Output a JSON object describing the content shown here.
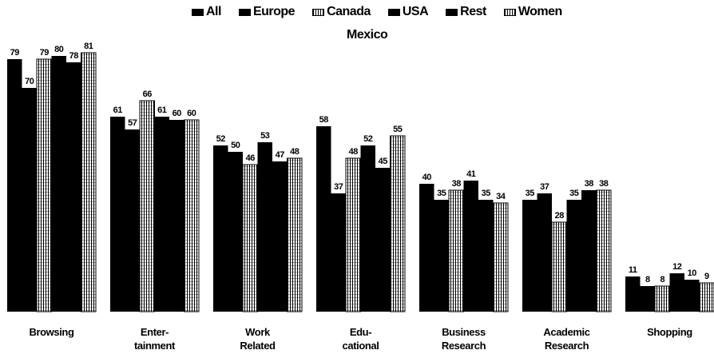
{
  "chart_data": {
    "type": "bar",
    "categories": [
      "Browsing",
      "Enter-\ntainment",
      "Work\nRelated",
      "Edu-\ncational",
      "Business\nResearch",
      "Academic\nResearch",
      "Shopping"
    ],
    "series": [
      {
        "name": "All",
        "pattern": "solid",
        "values": [
          79,
          61,
          52,
          58,
          40,
          35,
          11
        ]
      },
      {
        "name": "Europe",
        "pattern": "solid",
        "values": [
          70,
          57,
          50,
          37,
          35,
          37,
          8
        ]
      },
      {
        "name": "Canada",
        "pattern": "hatch",
        "values": [
          79,
          66,
          46,
          48,
          38,
          28,
          8
        ]
      },
      {
        "name": "USA",
        "pattern": "solid",
        "values": [
          80,
          61,
          53,
          52,
          41,
          35,
          12
        ]
      },
      {
        "name": "Rest",
        "pattern": "solid",
        "values": [
          78,
          60,
          47,
          45,
          35,
          38,
          10
        ]
      },
      {
        "name": "Women",
        "pattern": "hatch",
        "values": [
          81,
          60,
          48,
          55,
          34,
          38,
          9
        ]
      }
    ],
    "legend_extra": "Mexico",
    "value_labels": true,
    "ylim": [
      0,
      100
    ],
    "grid": false,
    "legend_position": "top",
    "colors": {
      "solid": "#000000",
      "hatch_bg": "#ffffff",
      "hatch_line": "#000000"
    }
  }
}
